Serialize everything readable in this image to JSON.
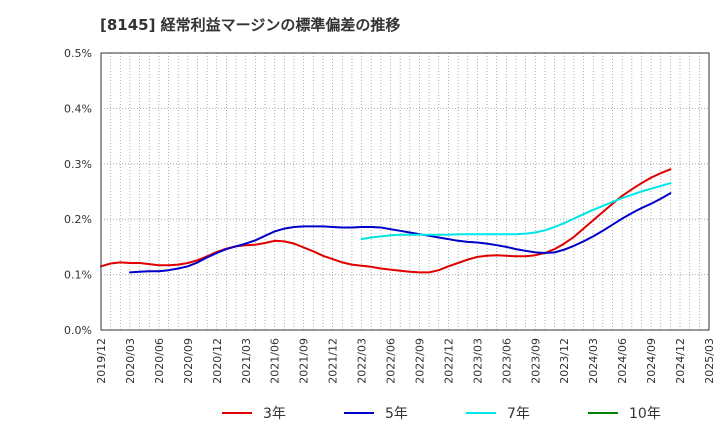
{
  "chart_data": {
    "type": "line",
    "title": "[8145]  経常利益マージンの標準偏差の推移",
    "xlabel": "",
    "ylabel": "",
    "ylim": [
      0,
      0.5
    ],
    "yticks": [
      "0.0%",
      "0.1%",
      "0.2%",
      "0.3%",
      "0.4%",
      "0.5%"
    ],
    "xticks": [
      "2019/12",
      "2020/03",
      "2020/06",
      "2020/09",
      "2020/12",
      "2021/03",
      "2021/06",
      "2021/09",
      "2021/12",
      "2022/03",
      "2022/06",
      "2022/09",
      "2022/12",
      "2023/03",
      "2023/06",
      "2023/09",
      "2023/12",
      "2024/03",
      "2024/06",
      "2024/09",
      "2024/12",
      "2025/03"
    ],
    "grid": true,
    "legend_position": "bottom",
    "series": [
      {
        "name": "3年",
        "color": "#e00000",
        "points": [
          [
            "2019/12",
            0.115
          ],
          [
            "2020/01",
            0.12
          ],
          [
            "2020/02",
            0.122
          ],
          [
            "2020/03",
            0.121
          ],
          [
            "2020/04",
            0.121
          ],
          [
            "2020/05",
            0.119
          ],
          [
            "2020/06",
            0.117
          ],
          [
            "2020/07",
            0.117
          ],
          [
            "2020/08",
            0.118
          ],
          [
            "2020/09",
            0.121
          ],
          [
            "2020/10",
            0.126
          ],
          [
            "2020/11",
            0.133
          ],
          [
            "2020/12",
            0.141
          ],
          [
            "2021/01",
            0.147
          ],
          [
            "2021/02",
            0.151
          ],
          [
            "2021/03",
            0.153
          ],
          [
            "2021/04",
            0.154
          ],
          [
            "2021/05",
            0.157
          ],
          [
            "2021/06",
            0.161
          ],
          [
            "2021/07",
            0.16
          ],
          [
            "2021/08",
            0.156
          ],
          [
            "2021/09",
            0.149
          ],
          [
            "2021/10",
            0.142
          ],
          [
            "2021/11",
            0.134
          ],
          [
            "2021/12",
            0.128
          ],
          [
            "2022/01",
            0.122
          ],
          [
            "2022/02",
            0.118
          ],
          [
            "2022/03",
            0.116
          ],
          [
            "2022/04",
            0.114
          ],
          [
            "2022/05",
            0.111
          ],
          [
            "2022/06",
            0.109
          ],
          [
            "2022/07",
            0.107
          ],
          [
            "2022/08",
            0.105
          ],
          [
            "2022/09",
            0.104
          ],
          [
            "2022/10",
            0.104
          ],
          [
            "2022/11",
            0.108
          ],
          [
            "2022/12",
            0.115
          ],
          [
            "2023/01",
            0.121
          ],
          [
            "2023/02",
            0.127
          ],
          [
            "2023/03",
            0.132
          ],
          [
            "2023/04",
            0.134
          ],
          [
            "2023/05",
            0.135
          ],
          [
            "2023/06",
            0.134
          ],
          [
            "2023/07",
            0.133
          ],
          [
            "2023/08",
            0.133
          ],
          [
            "2023/09",
            0.135
          ],
          [
            "2023/10",
            0.139
          ],
          [
            "2023/11",
            0.146
          ],
          [
            "2023/12",
            0.156
          ],
          [
            "2024/01",
            0.168
          ],
          [
            "2024/02",
            0.183
          ],
          [
            "2024/03",
            0.198
          ],
          [
            "2024/04",
            0.213
          ],
          [
            "2024/05",
            0.228
          ],
          [
            "2024/06",
            0.242
          ],
          [
            "2024/07",
            0.254
          ],
          [
            "2024/08",
            0.265
          ],
          [
            "2024/09",
            0.275
          ],
          [
            "2024/10",
            0.283
          ],
          [
            "2024/11",
            0.29
          ]
        ]
      },
      {
        "name": "5年",
        "color": "#0000c8",
        "points": [
          [
            "2020/03",
            0.104
          ],
          [
            "2020/04",
            0.105
          ],
          [
            "2020/05",
            0.106
          ],
          [
            "2020/06",
            0.106
          ],
          [
            "2020/07",
            0.108
          ],
          [
            "2020/08",
            0.111
          ],
          [
            "2020/09",
            0.115
          ],
          [
            "2020/10",
            0.122
          ],
          [
            "2020/11",
            0.131
          ],
          [
            "2020/12",
            0.139
          ],
          [
            "2021/01",
            0.146
          ],
          [
            "2021/02",
            0.151
          ],
          [
            "2021/03",
            0.156
          ],
          [
            "2021/04",
            0.162
          ],
          [
            "2021/05",
            0.17
          ],
          [
            "2021/06",
            0.178
          ],
          [
            "2021/07",
            0.183
          ],
          [
            "2021/08",
            0.186
          ],
          [
            "2021/09",
            0.187
          ],
          [
            "2021/10",
            0.187
          ],
          [
            "2021/11",
            0.187
          ],
          [
            "2021/12",
            0.186
          ],
          [
            "2022/01",
            0.185
          ],
          [
            "2022/02",
            0.185
          ],
          [
            "2022/03",
            0.186
          ],
          [
            "2022/04",
            0.186
          ],
          [
            "2022/05",
            0.185
          ],
          [
            "2022/06",
            0.182
          ],
          [
            "2022/07",
            0.179
          ],
          [
            "2022/08",
            0.176
          ],
          [
            "2022/09",
            0.173
          ],
          [
            "2022/10",
            0.17
          ],
          [
            "2022/11",
            0.167
          ],
          [
            "2022/12",
            0.164
          ],
          [
            "2023/01",
            0.161
          ],
          [
            "2023/02",
            0.159
          ],
          [
            "2023/03",
            0.158
          ],
          [
            "2023/04",
            0.156
          ],
          [
            "2023/05",
            0.153
          ],
          [
            "2023/06",
            0.15
          ],
          [
            "2023/07",
            0.146
          ],
          [
            "2023/08",
            0.143
          ],
          [
            "2023/09",
            0.14
          ],
          [
            "2023/10",
            0.139
          ],
          [
            "2023/11",
            0.14
          ],
          [
            "2023/12",
            0.145
          ],
          [
            "2024/01",
            0.152
          ],
          [
            "2024/02",
            0.16
          ],
          [
            "2024/03",
            0.169
          ],
          [
            "2024/04",
            0.179
          ],
          [
            "2024/05",
            0.19
          ],
          [
            "2024/06",
            0.201
          ],
          [
            "2024/07",
            0.211
          ],
          [
            "2024/08",
            0.22
          ],
          [
            "2024/09",
            0.228
          ],
          [
            "2024/10",
            0.237
          ],
          [
            "2024/11",
            0.247
          ]
        ]
      },
      {
        "name": "7年",
        "color": "#00e6e6",
        "points": [
          [
            "2022/03",
            0.164
          ],
          [
            "2022/04",
            0.167
          ],
          [
            "2022/05",
            0.169
          ],
          [
            "2022/06",
            0.171
          ],
          [
            "2022/07",
            0.172
          ],
          [
            "2022/08",
            0.172
          ],
          [
            "2022/09",
            0.172
          ],
          [
            "2022/10",
            0.172
          ],
          [
            "2022/11",
            0.172
          ],
          [
            "2022/12",
            0.172
          ],
          [
            "2023/01",
            0.173
          ],
          [
            "2023/02",
            0.173
          ],
          [
            "2023/03",
            0.173
          ],
          [
            "2023/04",
            0.173
          ],
          [
            "2023/05",
            0.173
          ],
          [
            "2023/06",
            0.173
          ],
          [
            "2023/07",
            0.173
          ],
          [
            "2023/08",
            0.174
          ],
          [
            "2023/09",
            0.176
          ],
          [
            "2023/10",
            0.18
          ],
          [
            "2023/11",
            0.186
          ],
          [
            "2023/12",
            0.193
          ],
          [
            "2024/01",
            0.201
          ],
          [
            "2024/02",
            0.209
          ],
          [
            "2024/03",
            0.217
          ],
          [
            "2024/04",
            0.224
          ],
          [
            "2024/05",
            0.231
          ],
          [
            "2024/06",
            0.238
          ],
          [
            "2024/07",
            0.244
          ],
          [
            "2024/08",
            0.25
          ],
          [
            "2024/09",
            0.255
          ],
          [
            "2024/10",
            0.26
          ],
          [
            "2024/11",
            0.265
          ]
        ]
      },
      {
        "name": "10年",
        "color": "#008000",
        "points": []
      }
    ]
  }
}
